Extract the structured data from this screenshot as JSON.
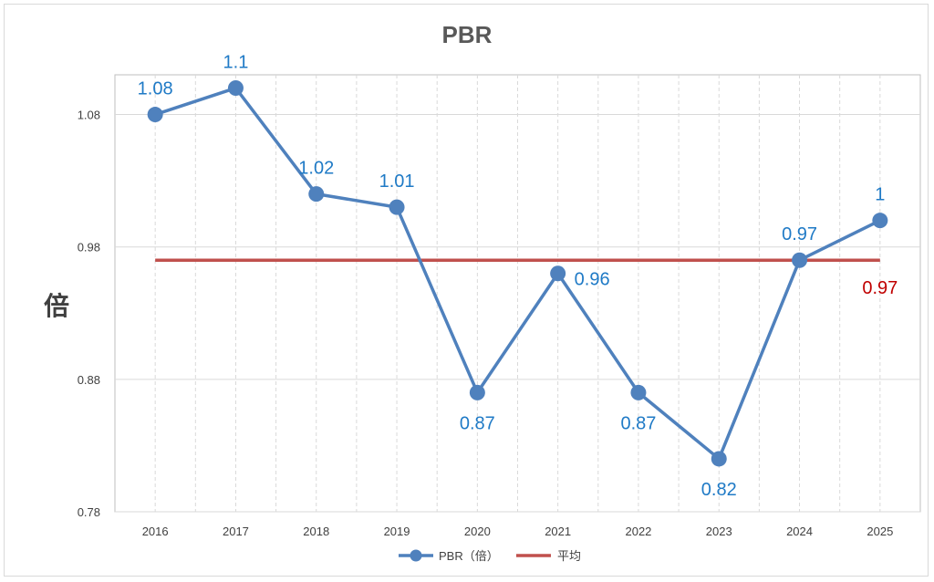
{
  "chart_data": {
    "type": "line",
    "title": "PBR",
    "ylabel": "倍",
    "xlabel": "",
    "categories": [
      "2016",
      "2017",
      "2018",
      "2019",
      "2020",
      "2021",
      "2022",
      "2023",
      "2024",
      "2025"
    ],
    "series": [
      {
        "name": "PBR（倍）",
        "values": [
          1.08,
          1.1,
          1.02,
          1.01,
          0.87,
          0.96,
          0.87,
          0.82,
          0.97,
          1
        ],
        "labels": [
          "1.08",
          "1.1",
          "1.02",
          "1.01",
          "0.87",
          "0.96",
          "0.87",
          "0.82",
          "0.97",
          "1"
        ],
        "color": "#4f81bd"
      },
      {
        "name": "平均",
        "values": [
          0.97,
          0.97,
          0.97,
          0.97,
          0.97,
          0.97,
          0.97,
          0.97,
          0.97,
          0.97
        ],
        "label": "0.97",
        "color": "#c0504d"
      }
    ],
    "yticks": [
      "0.78",
      "0.88",
      "0.98",
      "1.08"
    ],
    "ylim": [
      0.78,
      1.11
    ],
    "grid": true,
    "legend": "bottom-center"
  }
}
